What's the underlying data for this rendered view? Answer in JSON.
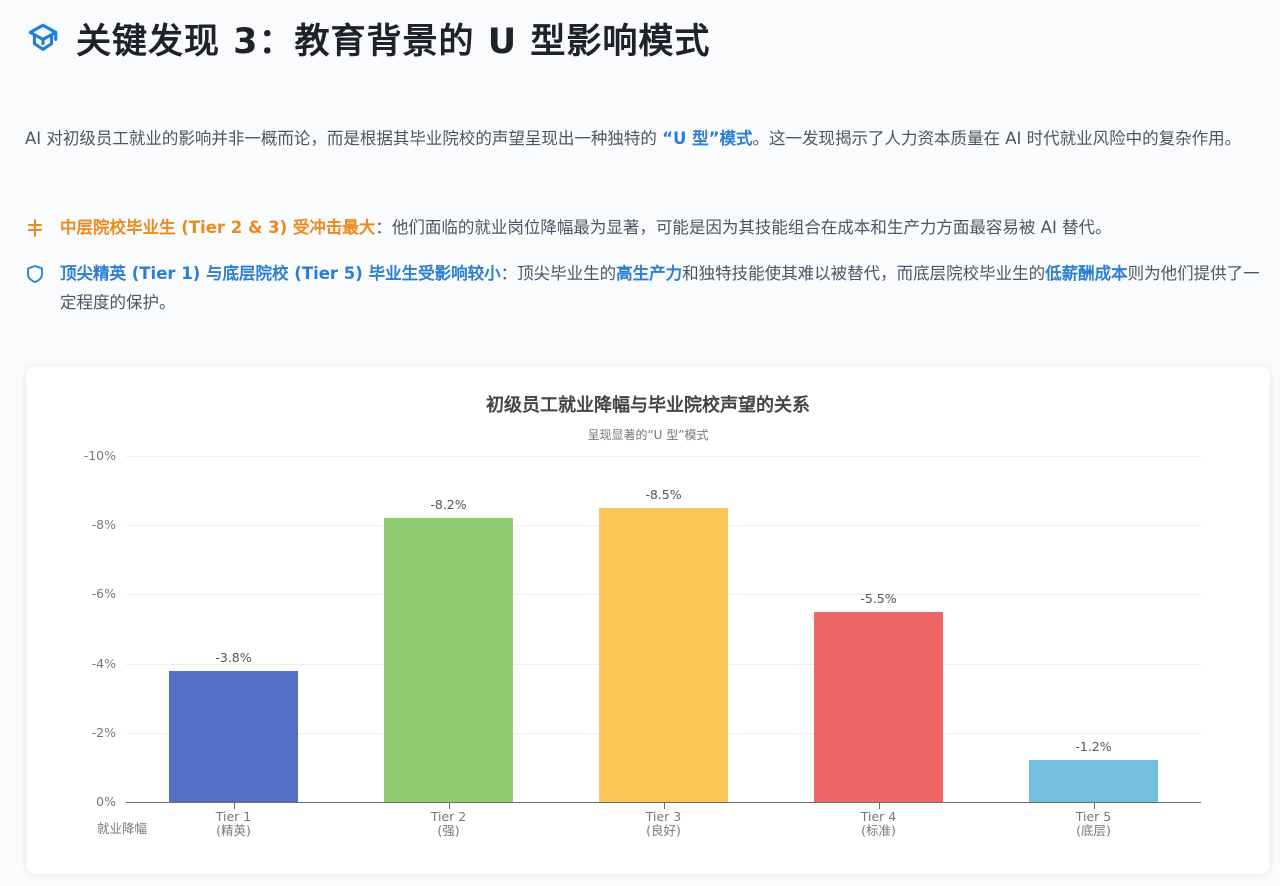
{
  "header": {
    "icon": "graduation-cap-icon",
    "title": "关键发现 3：教育背景的 U 型影响模式"
  },
  "intro": {
    "part1": "AI 对初级员工就业的影响并非一概而论，而是根据其毕业院校的声望呈现出一种独特的 ",
    "highlight": "“U 型”模式",
    "part2": "。这一发现揭示了人力资本质量在 AI 时代就业风险中的复杂作用。"
  },
  "bullets": [
    {
      "icon": "scale-balance-icon",
      "color": "#ea8a1c",
      "bold": "中层院校毕业生 (Tier 2 & 3) 受冲击最大",
      "text": "：他们面临的就业岗位降幅最为显著，可能是因为其技能组合在成本和生产力方面最容易被 AI 替代。"
    },
    {
      "icon": "shield-icon",
      "color": "#2b7fd4",
      "bold": "顶尖精英 (Tier 1) 与底层院校 (Tier 5) 毕业生受影响较小",
      "text1": "：顶尖毕业生的",
      "hl1": "高生产力",
      "text2": "和独特技能使其难以被替代，而底层院校毕业生的",
      "hl2": "低薪酬成本",
      "text3": "则为他们提供了一定程度的保护。"
    }
  ],
  "chart_data": {
    "type": "bar",
    "title": "初级员工就业降幅与毕业院校声望的关系",
    "subtitle": "呈现显著的“U 型”模式",
    "xlabel": "",
    "ylabel": "就业降幅",
    "categories": [
      "Tier 1 (精英)",
      "Tier 2 (强)",
      "Tier 3 (良好)",
      "Tier 4 (标准)",
      "Tier 5 (底层)"
    ],
    "category_lines": [
      [
        "Tier 1",
        "(精英)"
      ],
      [
        "Tier 2",
        "(强)"
      ],
      [
        "Tier 3",
        "(良好)"
      ],
      [
        "Tier 4",
        "(标准)"
      ],
      [
        "Tier 5",
        "(底层)"
      ]
    ],
    "values": [
      -3.8,
      -8.2,
      -8.5,
      -5.5,
      -1.2
    ],
    "value_labels": [
      "-3.8%",
      "-8.2%",
      "-8.5%",
      "-5.5%",
      "-1.2%"
    ],
    "colors": [
      "#5470c6",
      "#91cc75",
      "#fac858",
      "#ee6666",
      "#73c0de"
    ],
    "ylim": [
      0,
      -10
    ],
    "yticks": [
      "-10%",
      "-8%",
      "-6%",
      "-4%",
      "-2%",
      "0%"
    ],
    "ytick_values": [
      -10,
      -8,
      -6,
      -4,
      -2,
      0
    ],
    "grid": true,
    "legend": "none",
    "y_axis_inverted": true
  }
}
